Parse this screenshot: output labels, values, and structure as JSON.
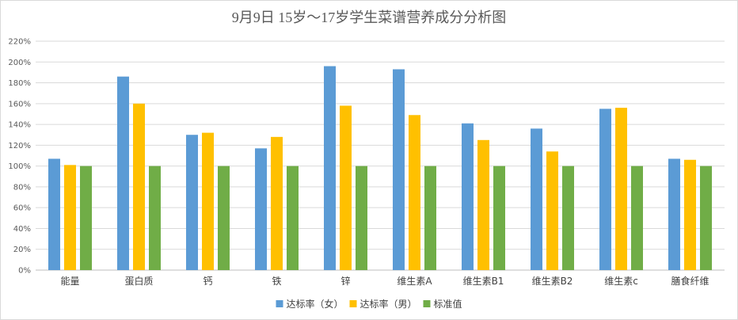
{
  "chart_data": {
    "type": "bar",
    "title": "9月9日 15岁～17岁学生菜谱营养成分分析图",
    "xlabel": "",
    "ylabel": "",
    "ylim": [
      0,
      220
    ],
    "y_unit": "%",
    "y_ticks": [
      "0%",
      "20%",
      "40%",
      "60%",
      "80%",
      "100%",
      "120%",
      "140%",
      "160%",
      "180%",
      "200%",
      "220%"
    ],
    "grid": true,
    "legend_position": "bottom",
    "categories": [
      "能量",
      "蛋白质",
      "钙",
      "铁",
      "锌",
      "维生素A",
      "维生素B1",
      "维生素B2",
      "维生素c",
      "膳食纤维"
    ],
    "series": [
      {
        "name": "达标率（女）",
        "color": "#5b9bd5",
        "values": [
          107,
          186,
          130,
          117,
          196,
          193,
          141,
          136,
          155,
          107
        ]
      },
      {
        "name": "达标率（男）",
        "color": "#ffc000",
        "values": [
          101,
          160,
          132,
          128,
          158,
          149,
          125,
          114,
          156,
          106
        ]
      },
      {
        "name": "标准值",
        "color": "#70ad47",
        "values": [
          100,
          100,
          100,
          100,
          100,
          100,
          100,
          100,
          100,
          100
        ]
      }
    ]
  }
}
